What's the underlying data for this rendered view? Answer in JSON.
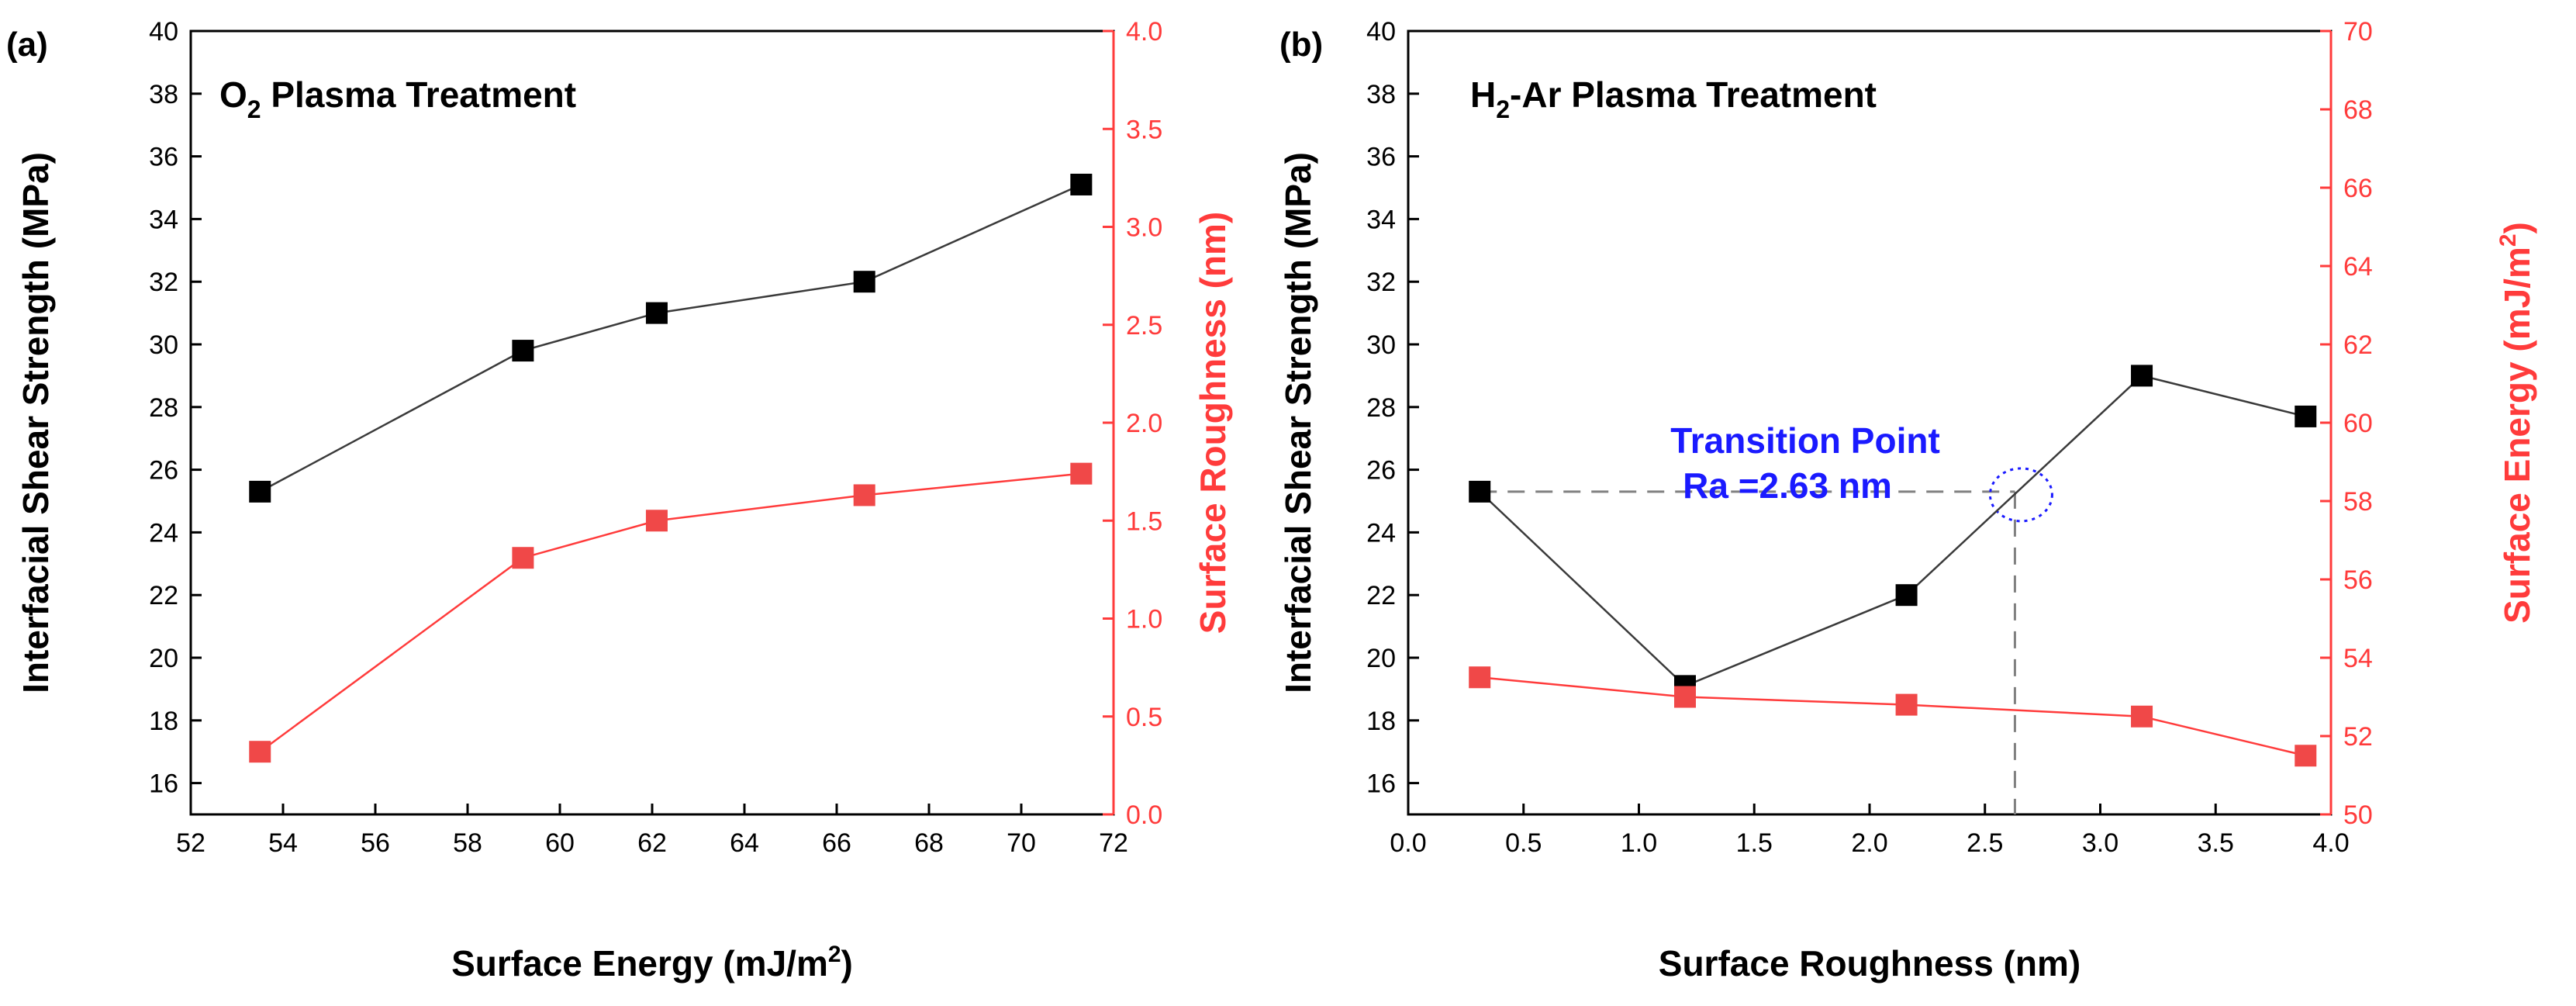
{
  "colors": {
    "black_series": "#000000",
    "red_series": "#ff3b3b",
    "red_marker": "#f04848",
    "annotation_blue": "#1a1aff",
    "dashed_guide": "#808080"
  },
  "chart_data": [
    {
      "panel": "(a)",
      "type": "line",
      "title": {
        "main": "O",
        "sub": "2",
        "rest": " Plasma Treatment"
      },
      "xlabel": {
        "main": "Surface Energy (mJ/m",
        "sup": "2",
        "end": ")"
      },
      "ylabel": "Interfacial Shear Strength (MPa)",
      "y2label": "Surface Roughness (nm)",
      "xlim": [
        52,
        72
      ],
      "xticks": [
        "52",
        "54",
        "56",
        "58",
        "60",
        "62",
        "64",
        "66",
        "68",
        "70",
        "72"
      ],
      "ylim": [
        15,
        40
      ],
      "yticks": [
        "16",
        "18",
        "20",
        "22",
        "24",
        "26",
        "28",
        "30",
        "32",
        "34",
        "36",
        "38",
        "40"
      ],
      "y2lim": [
        0,
        4
      ],
      "y2ticks": [
        "0.0",
        "0.5",
        "1.0",
        "1.5",
        "2.0",
        "2.5",
        "3.0",
        "3.5",
        "4.0"
      ],
      "series": [
        {
          "name": "Interfacial Shear Strength",
          "axis": "left",
          "color": "#000000",
          "x": [
            53.5,
            59.2,
            62.1,
            66.6,
            71.3
          ],
          "y": [
            25.3,
            29.8,
            31.0,
            32.0,
            35.1
          ]
        },
        {
          "name": "Surface Roughness",
          "axis": "right",
          "color": "#ff3b3b",
          "x": [
            53.5,
            59.2,
            62.1,
            66.6,
            71.3
          ],
          "y": [
            0.32,
            1.31,
            1.5,
            1.63,
            1.74
          ]
        }
      ]
    },
    {
      "panel": "(b)",
      "type": "line",
      "title": {
        "main": "H",
        "sub": "2",
        "rest": "-Ar Plasma Treatment"
      },
      "xlabel": {
        "main": "Surface Roughness (nm)",
        "sup": "",
        "end": ""
      },
      "ylabel": "Interfacial Shear Strength (MPa)",
      "y2label": {
        "main": "Surface Energy (mJ/m",
        "sup": "2",
        "end": ")"
      },
      "xlim": [
        0.0,
        4.0
      ],
      "xticks": [
        "0.0",
        "0.5",
        "1.0",
        "1.5",
        "2.0",
        "2.5",
        "3.0",
        "3.5",
        "4.0"
      ],
      "ylim": [
        15,
        40
      ],
      "yticks": [
        "16",
        "18",
        "20",
        "22",
        "24",
        "26",
        "28",
        "30",
        "32",
        "34",
        "36",
        "38",
        "40"
      ],
      "y2lim": [
        50,
        70
      ],
      "y2ticks": [
        "50",
        "52",
        "54",
        "56",
        "58",
        "60",
        "62",
        "64",
        "66",
        "68",
        "70"
      ],
      "series": [
        {
          "name": "Interfacial Shear Strength",
          "axis": "left",
          "color": "#000000",
          "x": [
            0.31,
            1.2,
            2.16,
            3.18,
            3.89
          ],
          "y": [
            25.3,
            19.1,
            22.0,
            29.0,
            27.7
          ]
        },
        {
          "name": "Surface Energy",
          "axis": "right",
          "color": "#ff3b3b",
          "x": [
            0.31,
            1.2,
            2.16,
            3.18,
            3.89
          ],
          "y": [
            53.5,
            53.0,
            52.8,
            52.5,
            51.5
          ]
        }
      ],
      "annotation": {
        "line1": "Transition Point",
        "line2": "Ra =2.63 nm",
        "x": 2.63,
        "y": 25.3
      }
    }
  ]
}
